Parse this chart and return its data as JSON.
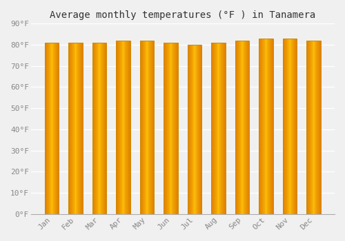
{
  "title": "Average monthly temperatures (°F ) in Tanamera",
  "months": [
    "Jan",
    "Feb",
    "Mar",
    "Apr",
    "May",
    "Jun",
    "Jul",
    "Aug",
    "Sep",
    "Oct",
    "Nov",
    "Dec"
  ],
  "values": [
    81,
    81,
    81,
    82,
    82,
    81,
    80,
    81,
    82,
    83,
    83,
    82
  ],
  "ylim": [
    0,
    90
  ],
  "yticks": [
    0,
    10,
    20,
    30,
    40,
    50,
    60,
    70,
    80,
    90
  ],
  "ytick_labels": [
    "0°F",
    "10°F",
    "20°F",
    "30°F",
    "40°F",
    "50°F",
    "60°F",
    "70°F",
    "80°F",
    "90°F"
  ],
  "bar_color_center": "#FFC107",
  "bar_color_edge": "#E08000",
  "bar_edge_color": "#CC8800",
  "background_color": "#F0F0F0",
  "grid_color": "#FFFFFF",
  "title_fontsize": 10,
  "tick_fontsize": 8,
  "tick_color": "#888888",
  "bar_width": 0.6
}
